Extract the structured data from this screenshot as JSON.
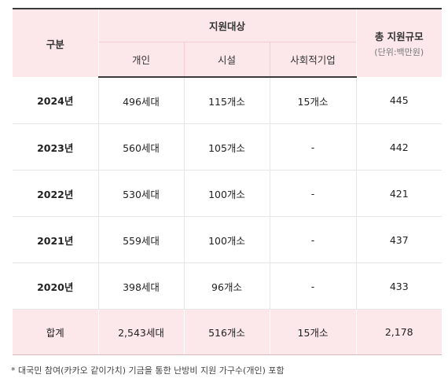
{
  "table": {
    "header": {
      "category": "구분",
      "target_group": "지원대상",
      "total_scale": "총 지원규모",
      "total_unit": "(단위:백만원)",
      "sub": [
        "개인",
        "시설",
        "사회적기업"
      ]
    },
    "rows": [
      {
        "year": "2024년",
        "individual": "496세대",
        "facility": "115개소",
        "social": "15개소",
        "total": "445"
      },
      {
        "year": "2023년",
        "individual": "560세대",
        "facility": "105개소",
        "social": "-",
        "total": "442"
      },
      {
        "year": "2022년",
        "individual": "530세대",
        "facility": "100개소",
        "social": "-",
        "total": "421"
      },
      {
        "year": "2021년",
        "individual": "559세대",
        "facility": "100개소",
        "social": "-",
        "total": "437"
      },
      {
        "year": "2020년",
        "individual": "398세대",
        "facility": "96개소",
        "social": "-",
        "total": "433"
      }
    ],
    "sum": {
      "label": "합계",
      "individual": "2,543세대",
      "facility": "516개소",
      "social": "15개소",
      "total": "2,178"
    }
  },
  "footnote": "* 대국민 참여(카카오 같이가치) 기금을 통한 난방비 지원 가구수(개인) 포함"
}
